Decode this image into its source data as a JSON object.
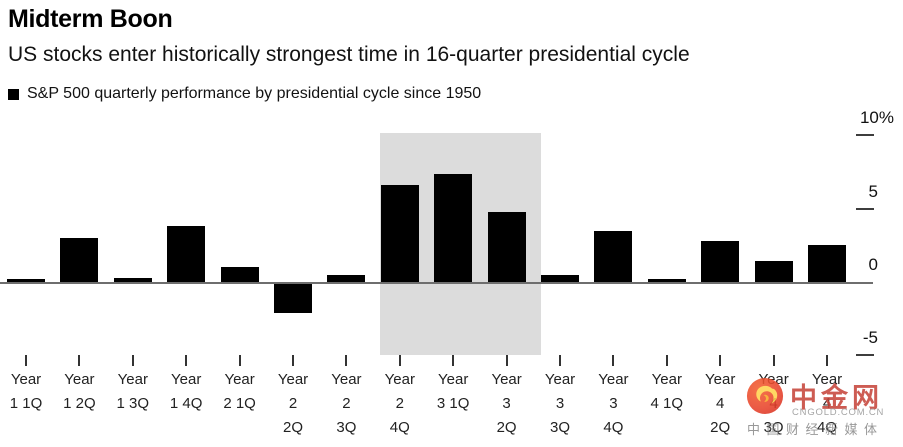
{
  "header": {
    "title": "Midterm Boon",
    "subtitle": "US stocks enter historically strongest time in 16-quarter presidential cycle",
    "legend_label": "S&P 500 quarterly performance by presidential cycle since 1950"
  },
  "chart_data": {
    "type": "bar",
    "title": "Midterm Boon",
    "subtitle": "US stocks enter historically strongest time in 16-quarter presidential cycle",
    "series_name": "S&P 500 quarterly performance by presidential cycle since 1950",
    "categories": [
      "Year 1 1Q",
      "Year 1 2Q",
      "Year 1 3Q",
      "Year 1 4Q",
      "Year 2 1Q",
      "Year 2 2Q",
      "Year 2 3Q",
      "Year 2 4Q",
      "Year 3 1Q",
      "Year 3 2Q",
      "Year 3 3Q",
      "Year 3 4Q",
      "Year 4 1Q",
      "Year 4 2Q",
      "Year 4 3Q",
      "Year 4 4Q"
    ],
    "category_lines": [
      [
        "Year",
        "1 1Q"
      ],
      [
        "Year",
        "1 2Q"
      ],
      [
        "Year",
        "1 3Q"
      ],
      [
        "Year",
        "1 4Q"
      ],
      [
        "Year",
        "2 1Q"
      ],
      [
        "Year",
        "2",
        "2Q"
      ],
      [
        "Year",
        "2",
        "3Q"
      ],
      [
        "Year",
        "2",
        "4Q"
      ],
      [
        "Year",
        "3 1Q"
      ],
      [
        "Year",
        "3",
        "2Q"
      ],
      [
        "Year",
        "3",
        "3Q"
      ],
      [
        "Year",
        "3",
        "4Q"
      ],
      [
        "Year",
        "4 1Q"
      ],
      [
        "Year",
        "4",
        "2Q"
      ],
      [
        "Year",
        "4",
        "3Q"
      ],
      [
        "Year",
        "4",
        "4Q"
      ]
    ],
    "values": [
      0.2,
      3.0,
      0.3,
      3.8,
      1.0,
      -2.0,
      0.5,
      6.6,
      7.4,
      4.8,
      0.5,
      3.5,
      0.2,
      2.8,
      1.4,
      2.5
    ],
    "unit": "%",
    "yticks": [
      10,
      5,
      0,
      -5
    ],
    "ytick_labels": [
      "10%",
      "5",
      "0",
      "-5"
    ],
    "ylim": [
      -5.7,
      10.2
    ],
    "grid": false,
    "legend_position": "top-left",
    "bar_color": "#000000",
    "highlight_region": {
      "from_category": "Year 2 4Q",
      "to_category": "Year 3 2Q",
      "color": "#dcdcdc"
    }
  },
  "watermark": {
    "name_cn": "中金网",
    "domain": "CNGOLD.COM.CN",
    "tagline_cn": "中国财经新媒体",
    "logo_icon": "swirl-cloud-icon",
    "circle_color": "#e8432c",
    "swirl_color": "#ffd34e",
    "name_color": "#c7463c"
  }
}
